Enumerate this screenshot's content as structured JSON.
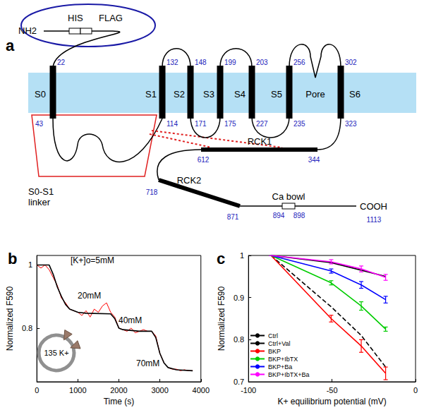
{
  "diagram": {
    "label": "a",
    "n_terminus": "NH2",
    "tags": [
      "HIS",
      "FLAG"
    ],
    "segments": [
      "S0",
      "S1",
      "S2",
      "S3",
      "S4",
      "S5",
      "Pore",
      "S6"
    ],
    "membrane_numbers_top": [
      22,
      132,
      148,
      199,
      203,
      256,
      302
    ],
    "membrane_numbers_bottom": [
      43,
      114,
      171,
      175,
      227,
      235,
      323
    ],
    "linker": [
      "S0-S1",
      "linker"
    ],
    "domains": [
      {
        "label": "RCK1",
        "start": 344,
        "end": 612
      },
      {
        "label": "RCK2",
        "start": 718,
        "end": 871
      }
    ],
    "ca_bowl": {
      "label": "Ca bowl",
      "start": 894,
      "end": 898
    },
    "c_terminus": {
      "label": "COOH",
      "residue": 1113
    }
  },
  "chart_data": [
    {
      "type": "line",
      "title": "b",
      "xlabel": "Time (s)",
      "ylabel": "Normalized F590",
      "xlim": [
        0,
        4000
      ],
      "xticks": [
        0,
        1000,
        2000,
        3000,
        4000
      ],
      "ylim": [
        0.63,
        1.03
      ],
      "yticks": [
        0.8,
        1
      ],
      "grid": false,
      "annotations": [
        "[K+]o=5mM",
        "20mM",
        "40mM",
        "70mM",
        "135 K+"
      ],
      "series": [
        {
          "color": "#ff0000",
          "x": [
            0,
            100,
            200,
            300,
            400,
            500,
            600,
            700,
            800,
            900,
            1000,
            1100,
            1200,
            1300,
            1400,
            1500,
            1600,
            1700,
            1800,
            1900,
            2000,
            2100,
            2200,
            2300,
            2400,
            2500,
            2600,
            2700,
            2800,
            2900,
            3000,
            3100,
            3200,
            3300,
            3400,
            3500,
            3600,
            3700,
            3800
          ],
          "values": [
            1.0,
            0.99,
            1.0,
            0.985,
            0.96,
            0.935,
            0.895,
            0.88,
            0.86,
            0.855,
            0.85,
            0.84,
            0.855,
            0.835,
            0.86,
            0.85,
            0.87,
            0.88,
            0.85,
            0.835,
            0.8,
            0.795,
            0.79,
            0.8,
            0.785,
            0.79,
            0.795,
            0.79,
            0.79,
            0.775,
            0.72,
            0.69,
            0.675,
            0.67,
            0.67,
            0.665,
            0.668,
            0.665,
            0.665
          ]
        },
        {
          "color": "#000000",
          "x": [
            0,
            300,
            400,
            500,
            600,
            700,
            800,
            1000,
            1200,
            1800,
            1900,
            2000,
            2100,
            2500,
            2800,
            2900,
            3000,
            3100,
            3200,
            3400,
            3800
          ],
          "values": [
            1,
            1,
            0.97,
            0.93,
            0.9,
            0.875,
            0.86,
            0.85,
            0.847,
            0.845,
            0.83,
            0.8,
            0.795,
            0.79,
            0.79,
            0.77,
            0.72,
            0.69,
            0.675,
            0.668,
            0.665
          ]
        }
      ]
    },
    {
      "type": "line",
      "title": "c",
      "xlabel": "K+ equilibrium potential (mV)",
      "ylabel": "Normalized F590",
      "xlim": [
        -100,
        0
      ],
      "xticks": [
        -100,
        -50,
        0
      ],
      "ylim": [
        0.7,
        1
      ],
      "yticks": [
        0.7,
        0.8,
        0.9,
        1
      ],
      "grid": false,
      "legend": "lower left",
      "x": [
        -86.5,
        -50.5,
        -32.5,
        -17.9
      ],
      "series": [
        {
          "name": "Ctrl",
          "color": "#000000",
          "line_style": "solid",
          "values": [
            1,
            0.983,
            0.965,
            0.95
          ]
        },
        {
          "name": "Ctrl+Val",
          "color": "#000000",
          "line_style": "dashed",
          "values": [
            1,
            0.878,
            0.81,
            0.735
          ]
        },
        {
          "name": "BKP",
          "color": "#ff0000",
          "line_style": "solid",
          "values": [
            1,
            0.85,
            0.785,
            0.72
          ],
          "errors": [
            0,
            0.008,
            0.015,
            0.015
          ]
        },
        {
          "name": "BKP+IbTX",
          "color": "#00cc00",
          "line_style": "solid",
          "values": [
            1,
            0.935,
            0.88,
            0.825
          ],
          "errors": [
            0,
            0.005,
            0.01,
            0.005
          ]
        },
        {
          "name": "BKP+Ba",
          "color": "#0000ff",
          "line_style": "solid",
          "values": [
            1,
            0.963,
            0.93,
            0.895
          ],
          "errors": [
            0,
            0.005,
            0.008,
            0.008
          ]
        },
        {
          "name": "BKP+IbTX+Ba",
          "color": "#ff00ff",
          "line_style": "solid",
          "values": [
            1,
            0.985,
            0.968,
            0.948
          ],
          "errors": [
            0,
            0.005,
            0.007,
            0.007
          ]
        }
      ]
    }
  ]
}
